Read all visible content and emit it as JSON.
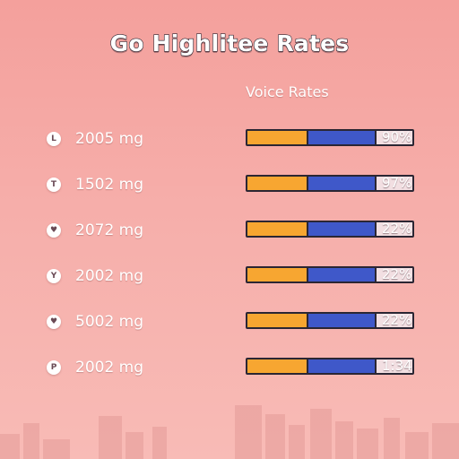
{
  "header": {
    "title": "Go Highlitee Rates"
  },
  "table": {
    "column_header": "Voice  Rates",
    "rows": [
      {
        "icon_name": "clock-icon",
        "icon_glyph": "L",
        "label": "2005 mg",
        "value": "90%",
        "orange_fraction": 0.37,
        "blue_fraction": 0.41
      },
      {
        "icon_name": "info-icon",
        "icon_glyph": "T",
        "label": "1502 mg",
        "value": "97%",
        "orange_fraction": 0.37,
        "blue_fraction": 0.41
      },
      {
        "icon_name": "heart-icon",
        "icon_glyph": "♥",
        "label": "2072 mg",
        "value": "22%",
        "orange_fraction": 0.37,
        "blue_fraction": 0.41
      },
      {
        "icon_name": "chevron-down-icon",
        "icon_glyph": "Y",
        "label": "2002 mg",
        "value": "22%",
        "orange_fraction": 0.37,
        "blue_fraction": 0.41
      },
      {
        "icon_name": "heart-icon",
        "icon_glyph": "♥",
        "label": "5002 mg",
        "value": "22%",
        "orange_fraction": 0.37,
        "blue_fraction": 0.41
      },
      {
        "icon_name": "flag-icon",
        "icon_glyph": "P",
        "label": "2002 mg",
        "value": "1:34",
        "orange_fraction": 0.37,
        "blue_fraction": 0.41
      }
    ]
  },
  "colors": {
    "bar_orange": "#f7a631",
    "bar_blue": "#3f58c9",
    "bar_outline": "#2b2633"
  }
}
